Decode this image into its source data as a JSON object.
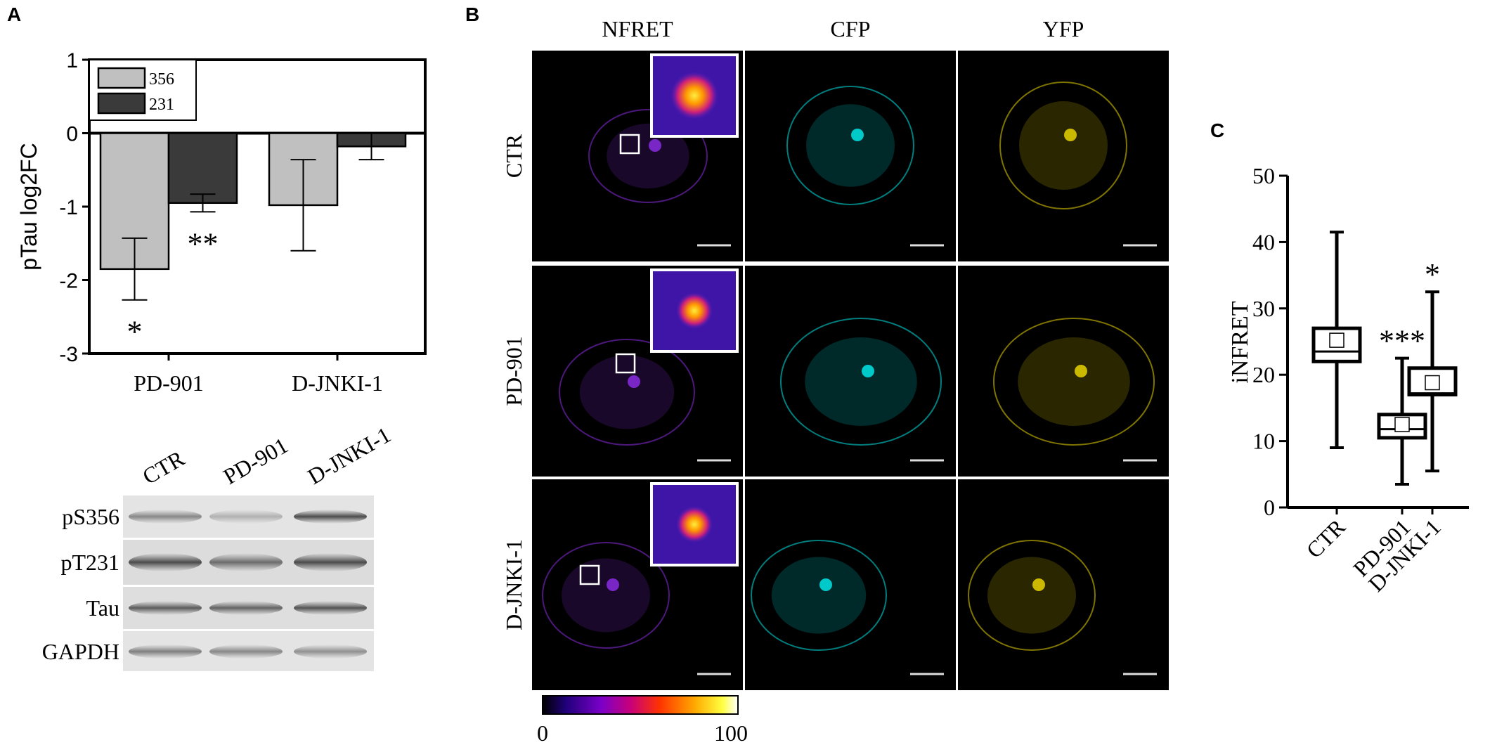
{
  "panels": {
    "a": "A",
    "b": "B",
    "c": "C"
  },
  "chart_data": [
    {
      "type": "bar",
      "ylabel": "pTau log2FC",
      "ylim": [
        -3,
        1
      ],
      "yticks": [
        "1",
        "0",
        "-1",
        "-2",
        "-3"
      ],
      "categories": [
        "PD-901",
        "D-JNKI-1"
      ],
      "series": [
        {
          "name": "356",
          "color": "#c0c0c0",
          "values": [
            -1.85,
            -0.98
          ],
          "err": [
            0.42,
            0.62
          ]
        },
        {
          "name": "231",
          "color": "#3a3a3a",
          "values": [
            -0.95,
            -0.18
          ],
          "err": [
            0.12,
            0.18
          ]
        }
      ],
      "legend": "top-left",
      "annotations": [
        {
          "text": "*",
          "category": "PD-901",
          "series": "356"
        },
        {
          "text": "**",
          "category": "PD-901",
          "series": "231"
        }
      ]
    },
    {
      "type": "box",
      "ylabel": "iNFRET",
      "ylim": [
        0,
        50
      ],
      "yticks": [
        "0",
        "10",
        "20",
        "30",
        "40",
        "50"
      ],
      "categories": [
        "CTR",
        "PD-901",
        "D-JNKI-1"
      ],
      "boxes": [
        {
          "min": 9,
          "q1": 22,
          "median": 23.5,
          "q3": 27,
          "max": 41.5,
          "mean": 25.2,
          "sig": ""
        },
        {
          "min": 3.5,
          "q1": 10.5,
          "median": 11.8,
          "q3": 14,
          "max": 22.5,
          "mean": 12.5,
          "sig": "***"
        },
        {
          "min": 5.5,
          "q1": 17,
          "median": 17.2,
          "q3": 21,
          "max": 32.5,
          "mean": 18.8,
          "sig": "*"
        }
      ]
    }
  ],
  "blot": {
    "lanes": [
      "CTR",
      "PD-901",
      "D-JNKI-1"
    ],
    "rows": [
      "pS356",
      "pT231",
      "Tau",
      "GAPDH"
    ]
  },
  "microscopy": {
    "columns": [
      "NFRET",
      "CFP",
      "YFP"
    ],
    "rows": [
      "CTR",
      "PD-901",
      "D-JNKI-1"
    ],
    "colorbar": {
      "min": "0",
      "max": "100"
    }
  }
}
